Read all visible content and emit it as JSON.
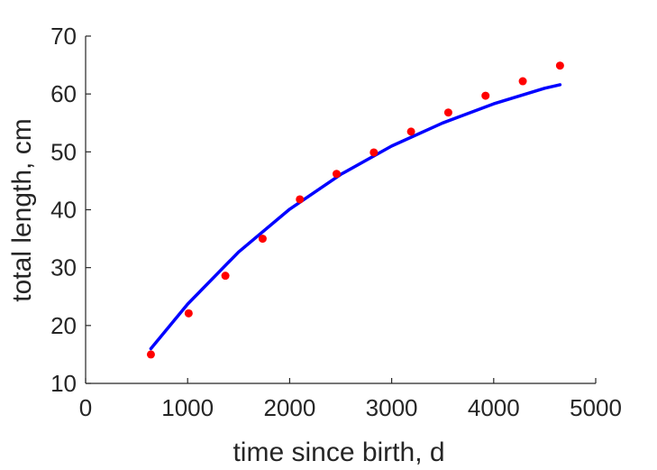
{
  "chart_data": {
    "type": "scatter",
    "title": "",
    "xlabel": "time since birth, d",
    "ylabel": "total length, cm",
    "xlim": [
      0,
      5000
    ],
    "ylim": [
      10,
      70
    ],
    "xticks": [
      0,
      1000,
      2000,
      3000,
      4000,
      5000
    ],
    "yticks": [
      10,
      20,
      30,
      40,
      50,
      60,
      70
    ],
    "grid": false,
    "legend": "none",
    "series": [
      {
        "kind": "scatter",
        "color": "#ff0000",
        "x": [
          640,
          1010,
          1370,
          1735,
          2100,
          2460,
          2825,
          3190,
          3555,
          3920,
          4285,
          4650
        ],
        "y": [
          15.0,
          22.1,
          28.6,
          35.0,
          41.8,
          46.2,
          49.9,
          53.5,
          56.8,
          59.7,
          62.2,
          64.9
        ]
      },
      {
        "kind": "line",
        "color": "#0000ff",
        "x": [
          640,
          1000,
          1500,
          2000,
          2500,
          3000,
          3500,
          4000,
          4500,
          4650
        ],
        "y": [
          16.0,
          23.7,
          32.7,
          40.1,
          46.1,
          51.0,
          55.0,
          58.3,
          61.0,
          61.6
        ]
      }
    ]
  }
}
